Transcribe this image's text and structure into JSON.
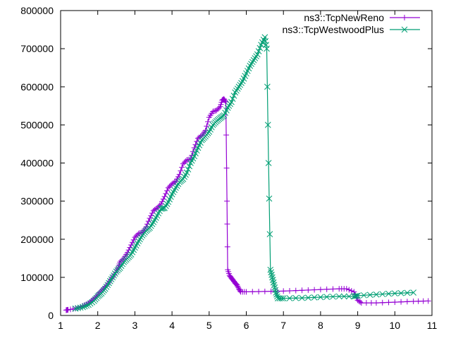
{
  "chart_data": {
    "type": "line",
    "title": "",
    "xlabel": "",
    "ylabel": "",
    "xlim": [
      1,
      11
    ],
    "ylim": [
      0,
      800000
    ],
    "x_ticks": [
      1,
      2,
      3,
      4,
      5,
      6,
      7,
      8,
      9,
      10,
      11
    ],
    "y_ticks": [
      0,
      100000,
      200000,
      300000,
      400000,
      500000,
      600000,
      700000,
      800000
    ],
    "x_tick_labels": [
      "1",
      "2",
      "3",
      "4",
      "5",
      "6",
      "7",
      "8",
      "9",
      "10",
      "11"
    ],
    "y_tick_labels": [
      "0",
      "100000",
      "200000",
      "300000",
      "400000",
      "500000",
      "600000",
      "700000",
      "800000"
    ],
    "grid": false,
    "legend_position": "top-right",
    "series": [
      {
        "name": "ns3::TcpNewReno",
        "color": "#9400d3",
        "marker": "plus",
        "x": [
          1.15,
          1.2,
          1.4,
          1.6,
          1.75,
          1.85,
          1.95,
          2.05,
          2.15,
          2.25,
          2.35,
          2.45,
          2.55,
          2.6,
          2.7,
          2.8,
          2.9,
          3.0,
          3.1,
          3.2,
          3.3,
          3.4,
          3.5,
          3.6,
          3.7,
          3.8,
          3.9,
          4.0,
          4.1,
          4.2,
          4.3,
          4.4,
          4.5,
          4.6,
          4.7,
          4.8,
          4.9,
          5.0,
          5.1,
          5.2,
          5.3,
          5.35,
          5.4,
          5.45,
          5.48,
          5.5,
          5.55,
          5.6,
          5.65,
          5.7,
          5.75,
          5.8,
          5.85,
          6.0,
          6.5,
          7.0,
          7.5,
          8.0,
          8.5,
          8.7,
          8.9,
          9.0,
          9.1,
          9.5,
          10.0,
          10.5,
          10.9
        ],
        "y": [
          14000,
          15000,
          18000,
          25000,
          32000,
          40000,
          48000,
          60000,
          70000,
          80000,
          95000,
          108000,
          125000,
          140000,
          150000,
          165000,
          185000,
          205000,
          215000,
          218000,
          232000,
          255000,
          275000,
          282000,
          292000,
          312000,
          335000,
          345000,
          352000,
          370000,
          398000,
          408000,
          410000,
          440000,
          465000,
          472000,
          485000,
          520000,
          535000,
          538000,
          548000,
          565000,
          568000,
          560000,
          300000,
          120000,
          105000,
          98000,
          92000,
          85000,
          80000,
          70000,
          62000,
          62000,
          63000,
          64000,
          66000,
          68000,
          70000,
          70000,
          62000,
          40000,
          33000,
          33000,
          35000,
          37000,
          38000
        ]
      },
      {
        "name": "ns3::TcpWestwoodPlus",
        "color": "#009e73",
        "marker": "x",
        "x": [
          1.4,
          1.6,
          1.75,
          1.9,
          2.0,
          2.1,
          2.2,
          2.3,
          2.4,
          2.5,
          2.6,
          2.7,
          2.8,
          2.9,
          3.0,
          3.1,
          3.2,
          3.3,
          3.4,
          3.5,
          3.6,
          3.7,
          3.8,
          3.9,
          4.0,
          4.1,
          4.2,
          4.3,
          4.4,
          4.5,
          4.6,
          4.7,
          4.8,
          4.9,
          5.0,
          5.1,
          5.2,
          5.3,
          5.4,
          5.5,
          5.6,
          5.7,
          5.8,
          5.9,
          6.0,
          6.1,
          6.2,
          6.3,
          6.4,
          6.5,
          6.55,
          6.6,
          6.65,
          6.7,
          6.75,
          6.8,
          6.85,
          7.0,
          7.5,
          8.0,
          8.5,
          8.9,
          9.0,
          9.5,
          10.0,
          10.5
        ],
        "y": [
          18000,
          22000,
          28000,
          38000,
          50000,
          58000,
          70000,
          85000,
          100000,
          115000,
          125000,
          140000,
          150000,
          160000,
          178000,
          195000,
          210000,
          222000,
          230000,
          245000,
          262000,
          280000,
          282000,
          298000,
          318000,
          335000,
          350000,
          358000,
          375000,
          400000,
          418000,
          440000,
          460000,
          470000,
          482000,
          500000,
          510000,
          518000,
          525000,
          545000,
          560000,
          585000,
          600000,
          615000,
          635000,
          655000,
          670000,
          685000,
          710000,
          730000,
          700000,
          400000,
          120000,
          100000,
          80000,
          60000,
          45000,
          45000,
          46000,
          48000,
          50000,
          50000,
          52000,
          55000,
          58000,
          60000
        ]
      }
    ]
  }
}
